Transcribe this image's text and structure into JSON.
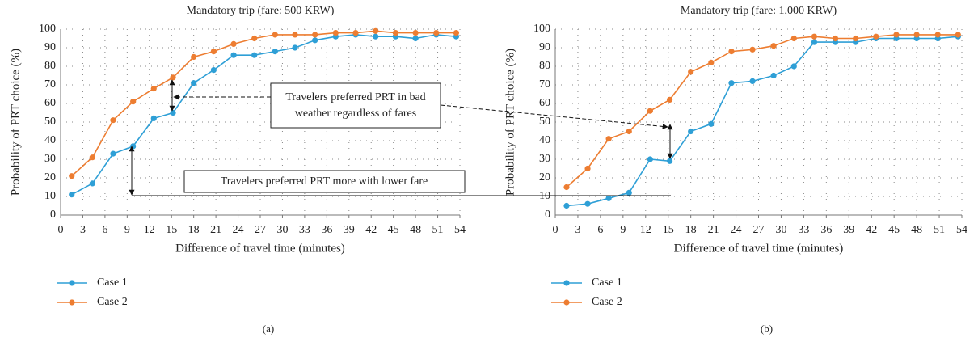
{
  "chart_data": [
    {
      "type": "line",
      "title": "Mandatory trip (fare: 500 KRW)",
      "xlabel": "Difference of travel time (minutes)",
      "ylabel": "Probability of PRT choice (%)",
      "panel_label": "(a)",
      "x": [
        1.5,
        4.3,
        7.1,
        9.8,
        12.6,
        15.2,
        18,
        20.7,
        23.4,
        26.2,
        29,
        31.7,
        34.4,
        37.2,
        39.9,
        42.6,
        45.3,
        48,
        50.8,
        53.5
      ],
      "series": [
        {
          "name": "Case 1",
          "color": "#2e9fd6",
          "values": [
            11,
            17,
            33,
            37,
            52,
            55,
            71,
            78,
            86,
            86,
            88,
            90,
            94,
            96,
            97,
            96,
            96,
            95,
            97,
            96
          ]
        },
        {
          "name": "Case 2",
          "color": "#ed7d31",
          "values": [
            21,
            31,
            51,
            61,
            68,
            74,
            85,
            88,
            92,
            95,
            97,
            97,
            97,
            98,
            98,
            99,
            98,
            98,
            98,
            98
          ]
        }
      ],
      "xlim": [
        0,
        54
      ],
      "ylim": [
        0,
        100
      ],
      "xticks": [
        0,
        3,
        6,
        9,
        12,
        15,
        18,
        21,
        24,
        27,
        30,
        33,
        36,
        39,
        42,
        45,
        48,
        51,
        54
      ],
      "yticks": [
        0,
        10,
        20,
        30,
        40,
        50,
        60,
        70,
        80,
        90,
        100
      ],
      "grid": true,
      "legend": "bottom-left",
      "annotations": [
        "Travelers preferred PRT in bad",
        "weather regardless of fares",
        "Travelers preferred PRT more with lower fare"
      ]
    },
    {
      "type": "line",
      "title": "Mandatory trip (fare: 1,000 KRW)",
      "xlabel": "Difference of travel time (minutes)",
      "ylabel": "Probability of PRT choice (%)",
      "panel_label": "(b)",
      "x": [
        1.5,
        4.3,
        7.1,
        9.8,
        12.6,
        15.2,
        18,
        20.7,
        23.4,
        26.2,
        29,
        31.7,
        34.4,
        37.2,
        39.9,
        42.6,
        45.3,
        48,
        50.8,
        53.5
      ],
      "series": [
        {
          "name": "Case 1",
          "color": "#2e9fd6",
          "values": [
            5,
            6,
            9,
            12,
            30,
            29,
            45,
            49,
            71,
            72,
            75,
            80,
            93,
            93,
            93,
            95,
            95,
            95,
            95,
            96
          ]
        },
        {
          "name": "Case 2",
          "color": "#ed7d31",
          "values": [
            15,
            25,
            41,
            45,
            56,
            62,
            77,
            82,
            88,
            89,
            91,
            95,
            96,
            95,
            95,
            96,
            97,
            97,
            97,
            97
          ]
        }
      ],
      "xlim": [
        0,
        54
      ],
      "ylim": [
        0,
        100
      ],
      "xticks": [
        0,
        3,
        6,
        9,
        12,
        15,
        18,
        21,
        24,
        27,
        30,
        33,
        36,
        39,
        42,
        45,
        48,
        51,
        54
      ],
      "yticks": [
        0,
        10,
        20,
        30,
        40,
        50,
        60,
        70,
        80,
        90,
        100
      ],
      "grid": true,
      "legend": "bottom-left"
    }
  ]
}
